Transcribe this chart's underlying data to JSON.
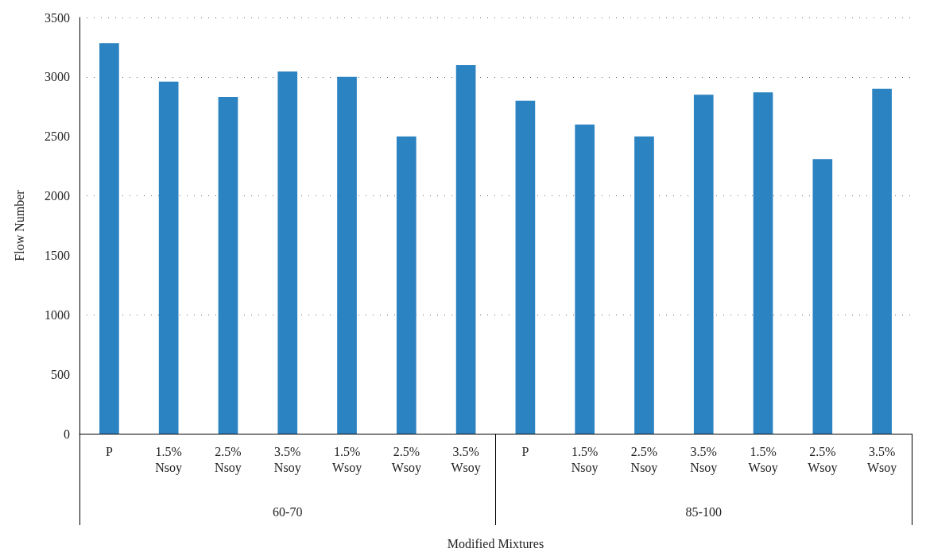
{
  "chart_data": {
    "type": "bar",
    "xlabel": "Modified Mixtures",
    "ylabel": "Flow Number",
    "categories": [
      "P",
      "1.5%\nNsoy",
      "2.5%\nNsoy",
      "3.5%\nNsoy",
      "1.5%\nWsoy",
      "2.5%\nWsoy",
      "3.5%\nWsoy",
      "P",
      "1.5%\nNsoy",
      "2.5%\nNsoy",
      "3.5%\nNsoy",
      "1.5%\nWsoy",
      "2.5%\nWsoy",
      "3.5%\nWsoy"
    ],
    "values": [
      3285,
      2960,
      2832,
      3045,
      3000,
      2500,
      3100,
      2800,
      2600,
      2500,
      2850,
      2870,
      2310,
      2900
    ],
    "color": "#2b83c2",
    "annotations": [
      "60-70",
      "85-100"
    ],
    "ylim": [
      0,
      3500
    ],
    "yticks": [
      0,
      500,
      1000,
      1500,
      2000,
      2500,
      3000,
      3500
    ],
    "grid": "y"
  }
}
